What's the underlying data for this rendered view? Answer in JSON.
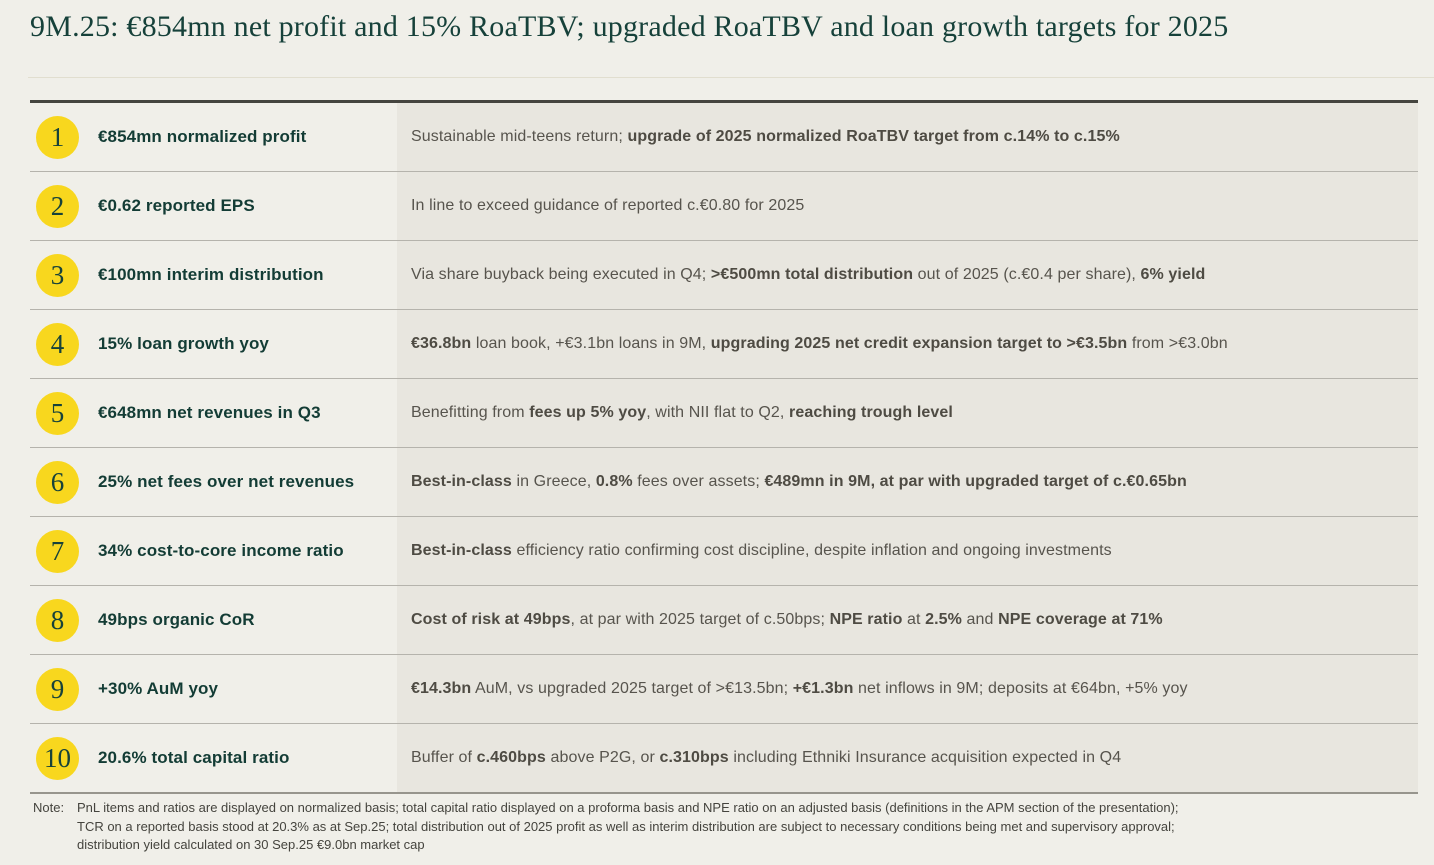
{
  "slide": {
    "title": "9M.25: €854mn net profit and 15% RoaTBV; upgraded RoaTBV and loan growth targets for 2025"
  },
  "colors": {
    "background": "#f0efe9",
    "detail_cell_background": "#e8e6df",
    "accent_yellow": "#f8d71e",
    "title_teal": "#16413a",
    "label_teal": "#133c35",
    "body_gray": "#57544d",
    "table_top_border": "#45453f"
  },
  "rows": [
    {
      "num": "1",
      "label": "€854mn normalized profit",
      "detail": [
        {
          "t": "Sustainable mid-teens return; "
        },
        {
          "t": "upgrade of 2025 normalized RoaTBV target from c.14% to c.15%",
          "b": true
        }
      ]
    },
    {
      "num": "2",
      "label": "€0.62 reported EPS",
      "detail": [
        {
          "t": "In line to exceed guidance of reported c.€0.80 for 2025"
        }
      ]
    },
    {
      "num": "3",
      "label": "€100mn interim distribution",
      "detail": [
        {
          "t": "Via share buyback being executed in Q4; "
        },
        {
          "t": ">€500mn total distribution",
          "b": true
        },
        {
          "t": " out of 2025 (c.€0.4 per share), "
        },
        {
          "t": "6% yield",
          "b": true
        }
      ]
    },
    {
      "num": "4",
      "label": "15% loan growth yoy",
      "detail": [
        {
          "t": "€36.8bn",
          "b": true
        },
        {
          "t": " loan book, +€3.1bn loans in 9M, "
        },
        {
          "t": "upgrading 2025 net credit expansion target to >€3.5bn",
          "b": true
        },
        {
          "t": " from >€3.0bn"
        }
      ]
    },
    {
      "num": "5",
      "label": "€648mn net revenues in Q3",
      "detail": [
        {
          "t": "Benefitting from "
        },
        {
          "t": "fees up 5% yoy",
          "b": true
        },
        {
          "t": ", with NII flat to Q2, "
        },
        {
          "t": "reaching trough level",
          "b": true
        }
      ]
    },
    {
      "num": "6",
      "label": "25% net fees over net revenues",
      "detail": [
        {
          "t": "Best-in-class",
          "b": true
        },
        {
          "t": " in Greece, "
        },
        {
          "t": "0.8%",
          "b": true
        },
        {
          "t": " fees over assets; "
        },
        {
          "t": "€489mn in 9M, at par with upgraded target of c.€0.65bn",
          "b": true
        }
      ]
    },
    {
      "num": "7",
      "label": "34% cost-to-core income ratio",
      "detail": [
        {
          "t": "Best-in-class",
          "b": true
        },
        {
          "t": " efficiency ratio confirming cost discipline, despite inflation and ongoing investments"
        }
      ]
    },
    {
      "num": "8",
      "label": "49bps organic CoR",
      "detail": [
        {
          "t": "Cost of risk at 49bps",
          "b": true
        },
        {
          "t": ", at par with 2025 target of c.50bps; "
        },
        {
          "t": "NPE ratio",
          "b": true
        },
        {
          "t": " at "
        },
        {
          "t": "2.5%",
          "b": true
        },
        {
          "t": " and "
        },
        {
          "t": "NPE coverage at 71%",
          "b": true
        }
      ]
    },
    {
      "num": "9",
      "label": "+30% AuM yoy",
      "detail": [
        {
          "t": "€14.3bn",
          "b": true
        },
        {
          "t": " AuM, vs upgraded 2025 target of >€13.5bn; "
        },
        {
          "t": "+€1.3bn",
          "b": true
        },
        {
          "t": " net inflows in 9M; deposits at €64bn, +5% yoy"
        }
      ]
    },
    {
      "num": "10",
      "label": "20.6% total capital ratio",
      "detail": [
        {
          "t": "Buffer of "
        },
        {
          "t": "c.460bps",
          "b": true
        },
        {
          "t": " above P2G, or "
        },
        {
          "t": "c.310bps",
          "b": true
        },
        {
          "t": " including Ethniki Insurance acquisition expected in Q4"
        }
      ]
    }
  ],
  "note": {
    "label": "Note:",
    "lines": [
      "PnL items and ratios are displayed on normalized basis; total capital ratio displayed on a proforma basis and NPE ratio on an adjusted basis (definitions in the APM section of the presentation);",
      "TCR on a reported basis stood at 20.3% as at Sep.25; total distribution out of 2025 profit as well as interim distribution are subject to necessary conditions being met and supervisory approval;",
      "distribution yield calculated on 30 Sep.25 €9.0bn market cap"
    ]
  }
}
